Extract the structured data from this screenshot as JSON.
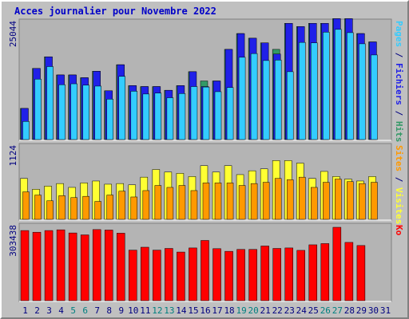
{
  "chart_data": {
    "type": "bar",
    "title": "Acces journalier pour Novembre 2022",
    "categories": [
      "1",
      "2",
      "3",
      "4",
      "5",
      "6",
      "7",
      "8",
      "9",
      "10",
      "11",
      "12",
      "13",
      "14",
      "15",
      "16",
      "17",
      "18",
      "19",
      "20",
      "21",
      "22",
      "23",
      "24",
      "25",
      "26",
      "27",
      "28",
      "29",
      "30",
      "31"
    ],
    "weekend_days": [
      "5",
      "6",
      "12",
      "13",
      "19",
      "20",
      "26",
      "27"
    ],
    "colors": {
      "hits": "#339966",
      "fichiers": "#2020e8",
      "pages": "#33ccff",
      "visites": "#ffff33",
      "sites": "#ff9900",
      "ko": "#ff0000",
      "title": "#0000c8",
      "weekend": "#008080",
      "weekday": "#000080"
    },
    "panels": [
      {
        "id": "top",
        "ymax": 25044,
        "ymax_label": "25044",
        "ylabel_parts": [
          {
            "text": "Pages",
            "color": "#33ccff"
          },
          {
            "text": " / ",
            "color": "#000080"
          },
          {
            "text": "Fichiers",
            "color": "#2020e8"
          },
          {
            "text": " / ",
            "color": "#000080"
          },
          {
            "text": "Hits",
            "color": "#339966"
          }
        ],
        "series": [
          {
            "name": "Hits",
            "values": [
              6700,
              15300,
              17800,
              13900,
              13900,
              13300,
              14700,
              10500,
              16100,
              11600,
              11400,
              11400,
              10600,
              11600,
              14600,
              12600,
              12600,
              19400,
              22800,
              21800,
              20800,
              19400,
              25000,
              24300,
              25000,
              25000,
              26000,
              26000,
              22800,
              21000,
              null
            ]
          },
          {
            "name": "Fichiers",
            "values": [
              6700,
              15300,
              17800,
              13900,
              13900,
              13300,
              14700,
              10500,
              16100,
              11600,
              11400,
              11400,
              10600,
              11600,
              14600,
              11400,
              12600,
              19400,
              22800,
              21800,
              20800,
              18400,
              25000,
              24300,
              25000,
              25000,
              26000,
              26000,
              22800,
              21000,
              null
            ]
          },
          {
            "name": "Pages",
            "values": [
              3900,
              13000,
              15700,
              11800,
              12000,
              11700,
              11500,
              8700,
              13600,
              10400,
              9800,
              10000,
              9000,
              9900,
              11400,
              11300,
              10300,
              11200,
              17700,
              18500,
              17000,
              17100,
              14600,
              20900,
              20800,
              23100,
              23700,
              23000,
              20600,
              18200,
              null
            ]
          }
        ]
      },
      {
        "id": "middle",
        "ymax": 1124,
        "ymax_label": "1124",
        "ylabel_parts": [
          {
            "text": "Sites",
            "color": "#ff9900"
          },
          {
            "text": " / ",
            "color": "#000080"
          },
          {
            "text": "Visites",
            "color": "#ffff33"
          }
        ],
        "series": [
          {
            "name": "Visites",
            "values": [
              640,
              470,
              520,
              560,
              500,
              570,
              600,
              550,
              560,
              540,
              660,
              780,
              740,
              720,
              670,
              840,
              740,
              840,
              700,
              760,
              790,
              920,
              920,
              880,
              640,
              750,
              670,
              630,
              600,
              670,
              null
            ]
          },
          {
            "name": "Sites",
            "values": [
              430,
              380,
              290,
              370,
              340,
              360,
              280,
              380,
              440,
              350,
              450,
              530,
              500,
              530,
              450,
              570,
              570,
              570,
              530,
              560,
              580,
              640,
              620,
              660,
              500,
              580,
              630,
              590,
              560,
              580,
              null
            ]
          }
        ]
      },
      {
        "id": "bottom",
        "ymax": 303438,
        "ymax_label": "303438",
        "ylabel_parts": [
          {
            "text": "Ko",
            "color": "#ff0000"
          }
        ],
        "series": [
          {
            "name": "Ko",
            "values": [
              290000,
              283000,
              290000,
              293000,
              280000,
              272000,
              294000,
              292000,
              279000,
              209000,
              221000,
              209000,
              216000,
              201000,
              218000,
              249000,
              215000,
              204000,
              212000,
              212000,
              226000,
              216000,
              218000,
              208000,
              231000,
              236000,
              303438,
              241000,
              228000,
              null,
              null
            ]
          }
        ]
      }
    ]
  }
}
